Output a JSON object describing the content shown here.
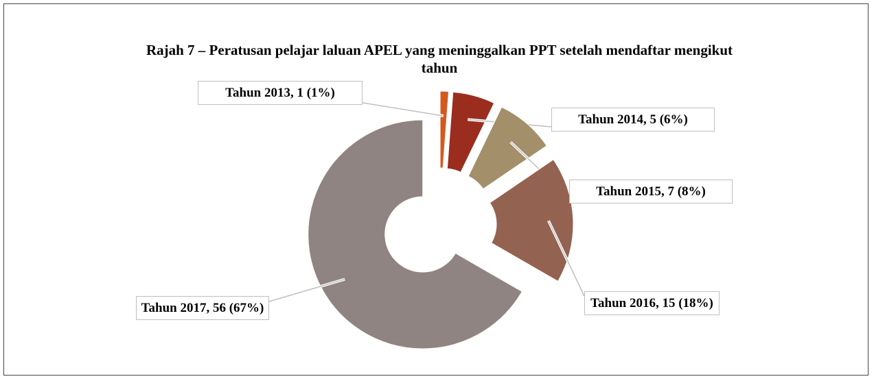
{
  "chart_data": {
    "type": "donut",
    "title": "Rajah 7 – Peratusan pelajar laluan APEL yang meninggalkan PPT setelah mendaftar mengikut tahun",
    "values": [
      1,
      5,
      7,
      15,
      56
    ],
    "value_labels": [
      "Tahun 2013, 1 (1%)",
      "Tahun 2014, 5 (6%)",
      "Tahun 2015, 7 (8%)",
      "Tahun 2016, 15 (18%)",
      "Tahun 2017, 56 (67%)"
    ],
    "colors": [
      "#d35a1e",
      "#9b2d1f",
      "#a38f6a",
      "#946250",
      "#8f8482"
    ]
  }
}
